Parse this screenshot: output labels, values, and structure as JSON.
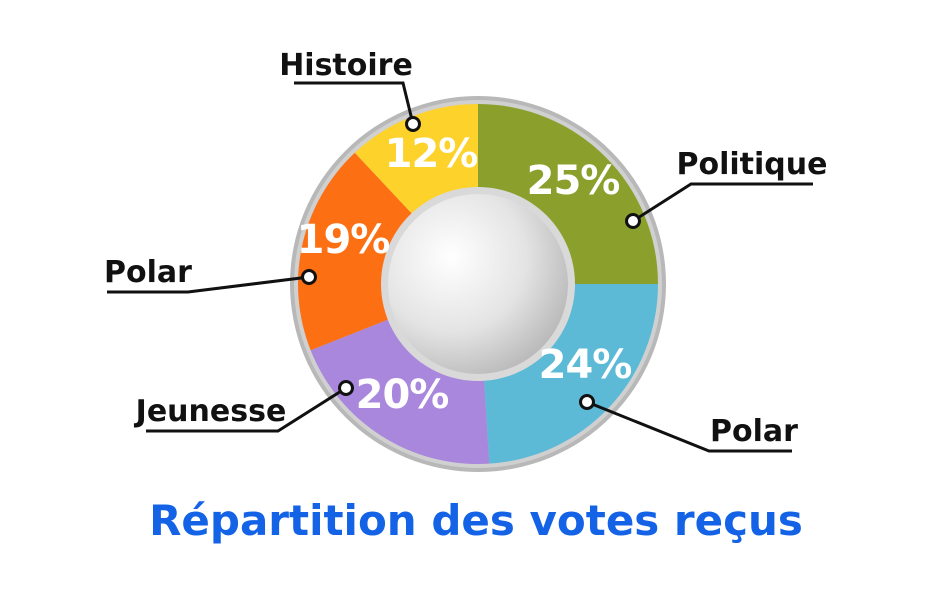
{
  "chart_data": {
    "type": "pie",
    "title": "Répartition des votes reçus",
    "slices": [
      {
        "label": "Politique",
        "value": 25,
        "value_label": "25%",
        "color": "#8ba02c"
      },
      {
        "label": "Polar",
        "value": 24,
        "value_label": "24%",
        "color": "#5cbad6"
      },
      {
        "label": "Jeunesse",
        "value": 20,
        "value_label": "20%",
        "color": "#a987dd"
      },
      {
        "label": "Polar",
        "value": 19,
        "value_label": "19%",
        "color": "#fd6f13"
      },
      {
        "label": "Histoire",
        "value": 12,
        "value_label": "12%",
        "color": "#fdd22b"
      }
    ]
  }
}
